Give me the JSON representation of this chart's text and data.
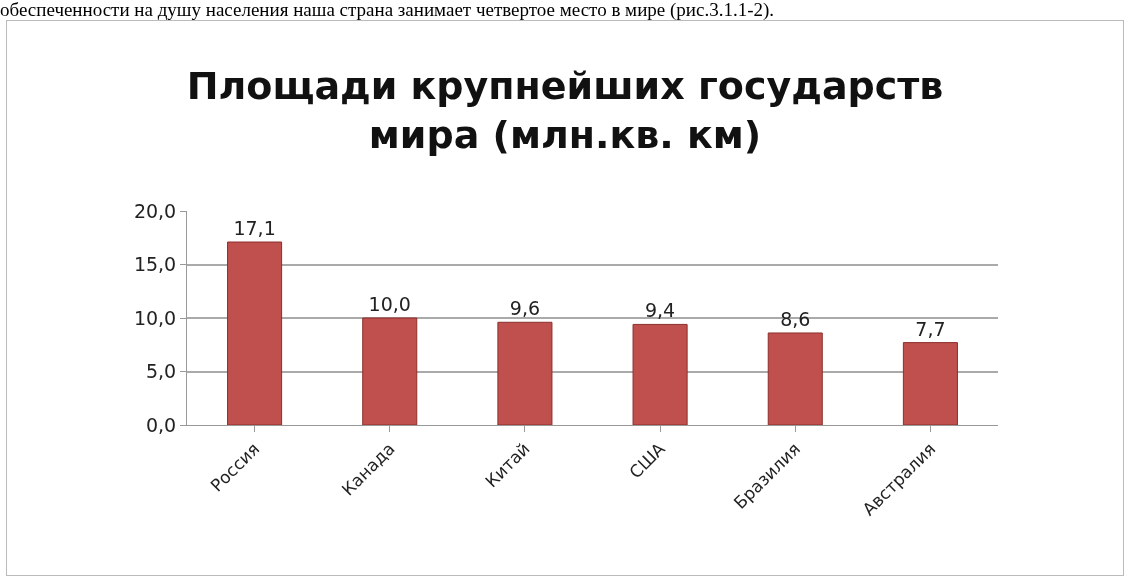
{
  "chart_data": {
    "type": "bar",
    "title": "Площади крупнейших государств мира (млн.кв. км)",
    "annotations": [
      "обеспеченности на душу населения наша страна занимает  четвертое место в мире (рис.3.1.1-2)."
    ],
    "categories": [
      "Россия",
      "Канада",
      "Китай",
      "США",
      "Бразилия",
      "Австралия"
    ],
    "values": [
      17.1,
      10.0,
      9.6,
      9.4,
      8.6,
      7.7
    ],
    "value_labels": [
      "17,1",
      "10,0",
      "9,6",
      "9,4",
      "8,6",
      "7,7"
    ],
    "color": "#c0504d",
    "ylim": [
      0,
      20
    ],
    "yticks": [
      {
        "value": 0,
        "label": "0,0"
      },
      {
        "value": 5,
        "label": "5,0"
      },
      {
        "value": 10,
        "label": "10,0"
      },
      {
        "value": 15,
        "label": "15,0"
      },
      {
        "value": 20,
        "label": "20,0"
      }
    ],
    "grid": "y",
    "legend": false
  }
}
